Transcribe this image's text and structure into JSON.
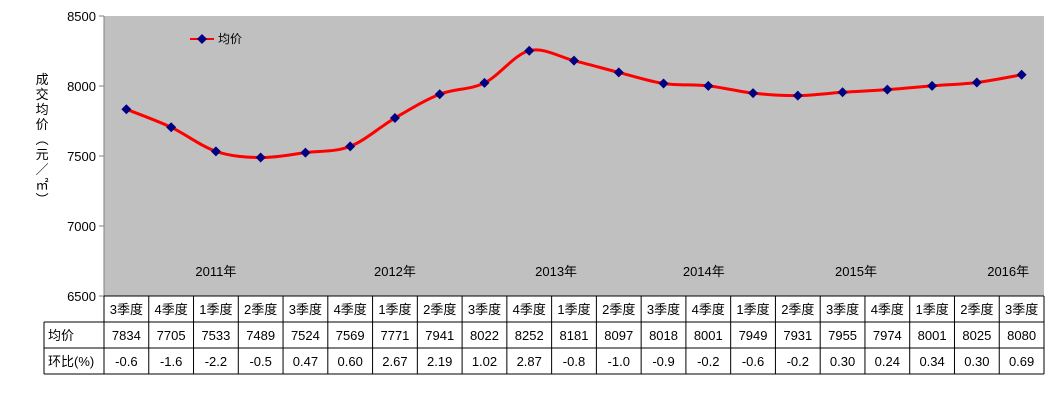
{
  "chart_data": {
    "type": "line",
    "ylabel": "成交均价（元／㎡）",
    "ylim": [
      6500,
      8500
    ],
    "yticks": [
      "8500",
      "8000",
      "7500",
      "7000",
      "6500"
    ],
    "legend": {
      "label": "均价",
      "position": "top-left"
    },
    "grid": false,
    "categories": [
      "3季度",
      "4季度",
      "1季度",
      "2季度",
      "3季度",
      "4季度",
      "1季度",
      "2季度",
      "3季度",
      "4季度",
      "1季度",
      "2季度",
      "3季度",
      "4季度",
      "1季度",
      "2季度",
      "3季度",
      "4季度",
      "1季度",
      "2季度",
      "3季度"
    ],
    "year_labels": [
      {
        "label": "2011年",
        "at_index": 2
      },
      {
        "label": "2012年",
        "at_index": 6
      },
      {
        "label": "2013年",
        "at_index": 9.6
      },
      {
        "label": "2014年",
        "at_index": 12.9
      },
      {
        "label": "2015年",
        "at_index": 16.3
      },
      {
        "label": "2016年",
        "at_index": 19.7
      }
    ],
    "series": [
      {
        "name": "均价",
        "color": "#ff0000",
        "marker_color": "#000080",
        "values": [
          7834,
          7705,
          7533,
          7489,
          7524,
          7569,
          7771,
          7941,
          8022,
          8252,
          8181,
          8097,
          8018,
          8001,
          7949,
          7931,
          7955,
          7974,
          8001,
          8025,
          8080
        ]
      }
    ],
    "table": {
      "rows": [
        {
          "label": "均价",
          "values": [
            "7834",
            "7705",
            "7533",
            "7489",
            "7524",
            "7569",
            "7771",
            "7941",
            "8022",
            "8252",
            "8181",
            "8097",
            "8018",
            "8001",
            "7949",
            "7931",
            "7955",
            "7974",
            "8001",
            "8025",
            "8080"
          ]
        },
        {
          "label": "环比(%)",
          "values": [
            "-0.6",
            "-1.6",
            "-2.2",
            "-0.5",
            "0.47",
            "0.60",
            "2.67",
            "2.19",
            "1.02",
            "2.87",
            "-0.8",
            "-1.0",
            "-0.9",
            "-0.2",
            "-0.6",
            "-0.2",
            "0.30",
            "0.24",
            "0.34",
            "0.30",
            "0.69"
          ]
        }
      ]
    }
  }
}
